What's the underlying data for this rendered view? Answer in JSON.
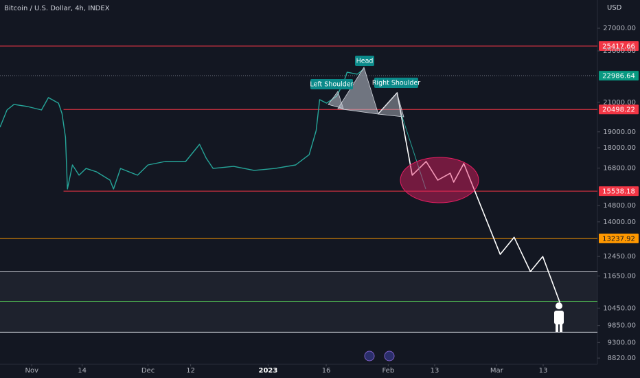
{
  "chart_data": {
    "type": "line",
    "title": "Bitcoin / U.S. Dollar, 4h, INDEX",
    "currency": "USD",
    "log_scale": true,
    "grid": false,
    "ylim": [
      8638,
      29710
    ],
    "yticks": [
      {
        "value": 27000,
        "label": "27000.00"
      },
      {
        "value": 25000,
        "label": "25000.00"
      },
      {
        "value": 21000,
        "label": "21000.00"
      },
      {
        "value": 19000,
        "label": "19000.00"
      },
      {
        "value": 18000,
        "label": "18000.00"
      },
      {
        "value": 16800,
        "label": "16800.00"
      },
      {
        "value": 14800,
        "label": "14800.00"
      },
      {
        "value": 14000,
        "label": "14000.00"
      },
      {
        "value": 12450,
        "label": "12450.00"
      },
      {
        "value": 11650,
        "label": "11650.00"
      },
      {
        "value": 10450,
        "label": "10450.00"
      },
      {
        "value": 9850,
        "label": "9850.00"
      },
      {
        "value": 9300,
        "label": "9300.00"
      },
      {
        "value": 8820,
        "label": "8820.00"
      }
    ],
    "xlim": [
      -8.2,
      146
    ],
    "xticks": [
      {
        "value": 0,
        "label": "Nov"
      },
      {
        "value": 13,
        "label": "14"
      },
      {
        "value": 30,
        "label": "Dec"
      },
      {
        "value": 41,
        "label": "12"
      },
      {
        "value": 61,
        "label": "2023"
      },
      {
        "value": 76,
        "label": "16"
      },
      {
        "value": 92,
        "label": "Feb"
      },
      {
        "value": 104,
        "label": "13"
      },
      {
        "value": 120,
        "label": "Mar"
      },
      {
        "value": 132,
        "label": "13"
      }
    ],
    "series": [
      {
        "color": "#26a69a",
        "x": [
          -8.2,
          -6.4,
          -4.6,
          -1.1,
          2.5,
          4.3,
          6.9,
          7.8,
          8.7,
          9.2,
          10.5,
          12.2,
          14.0,
          16.7,
          20.2,
          21.1,
          22.9,
          27.3,
          30.0,
          34.4,
          39.7,
          43.3,
          45.0,
          46.8,
          52.1,
          57.4,
          62.8,
          68.1,
          71.6,
          73.4,
          74.3,
          76.1,
          78.7,
          80.5,
          81.4,
          84.0,
          85.8
        ],
        "values": [
          19300,
          20460,
          20850,
          20700,
          20460,
          21340,
          20940,
          20220,
          18640,
          15650,
          16980,
          16400,
          16780,
          16590,
          16130,
          15650,
          16780,
          16400,
          16980,
          17180,
          17180,
          18210,
          17380,
          16780,
          16900,
          16670,
          16780,
          16980,
          17580,
          19080,
          21190,
          20940,
          21440,
          22460,
          23260,
          23100,
          23530
        ]
      },
      {
        "color": "#ffffff",
        "x": [
          89.5,
          94.3,
          98.2,
          101.8,
          104.8,
          108.0,
          108.9,
          111.5,
          120.9,
          124.5,
          128.7,
          131.9,
          136.3
        ],
        "values": [
          20220,
          21690,
          16400,
          17180,
          16130,
          16510,
          16020,
          17060,
          12540,
          13290,
          11830,
          12450,
          10650
        ]
      }
    ],
    "levels": [
      {
        "value": 25417.66,
        "color": "#f23645",
        "labeled": true,
        "from": -8.2
      },
      {
        "value": 22986.64,
        "color": "#089981",
        "labeled": true,
        "from": -8.2,
        "dotted": true
      },
      {
        "value": 20498.22,
        "color": "#f23645",
        "labeled": true,
        "from": 8.2
      },
      {
        "value": 15538.18,
        "color": "#f23645",
        "labeled": true,
        "from": 8.2
      },
      {
        "value": 13237.92,
        "color": "#ff9800",
        "labeled": true,
        "from": -8.2
      },
      {
        "value": 11820,
        "color": "#d1d4dc",
        "labeled": false,
        "from": -8.2
      },
      {
        "value": 10690,
        "color": "#4caf50",
        "labeled": false,
        "from": -8.2
      },
      {
        "value": 9630,
        "color": "#d1d4dc",
        "labeled": false,
        "from": -8.2
      }
    ],
    "annotations": [
      "Left Shoulder",
      "Head",
      "Right Shoulder"
    ]
  }
}
